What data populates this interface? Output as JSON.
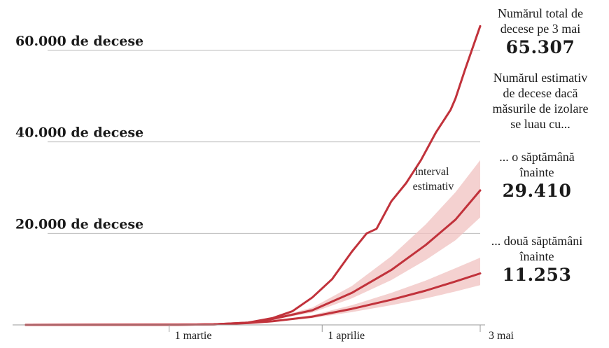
{
  "chart_data": {
    "type": "line",
    "x_axis": {
      "start": "2020-02-01",
      "end": "2020-05-03",
      "ticks": [
        {
          "date": "2020-03-01",
          "label": "1 martie"
        },
        {
          "date": "2020-04-01",
          "label": "1 aprilie"
        },
        {
          "date": "2020-05-03",
          "label": "3 mai"
        }
      ]
    },
    "y_axis": {
      "ylim": [
        0,
        60000
      ],
      "gridlines": [
        {
          "value": 20000,
          "label": "20.000 de decese"
        },
        {
          "value": 40000,
          "label": "40.000 de decese"
        },
        {
          "value": 60000,
          "label": "60.000 de decese"
        }
      ]
    },
    "series": [
      {
        "color": "#c1323b",
        "points": [
          [
            "2020-02-01",
            0
          ],
          [
            "2020-03-01",
            30
          ],
          [
            "2020-03-10",
            100
          ],
          [
            "2020-03-17",
            500
          ],
          [
            "2020-03-22",
            1500
          ],
          [
            "2020-03-26",
            3000
          ],
          [
            "2020-03-30",
            6000
          ],
          [
            "2020-04-03",
            10000
          ],
          [
            "2020-04-07",
            16000
          ],
          [
            "2020-04-10",
            20000
          ],
          [
            "2020-04-12",
            21000
          ],
          [
            "2020-04-15",
            27000
          ],
          [
            "2020-04-18",
            31000
          ],
          [
            "2020-04-21",
            36000
          ],
          [
            "2020-04-24",
            42000
          ],
          [
            "2020-04-27",
            47000
          ],
          [
            "2020-04-28",
            49500
          ],
          [
            "2020-04-30",
            56000
          ],
          [
            "2020-05-03",
            65307
          ]
        ]
      },
      {
        "color": "#c1323b",
        "points": [
          [
            "2020-02-01",
            0
          ],
          [
            "2020-03-01",
            30
          ],
          [
            "2020-03-10",
            100
          ],
          [
            "2020-03-17",
            500
          ],
          [
            "2020-03-22",
            1300
          ],
          [
            "2020-03-30",
            3200
          ],
          [
            "2020-04-07",
            7000
          ],
          [
            "2020-04-15",
            12000
          ],
          [
            "2020-04-22",
            17500
          ],
          [
            "2020-04-28",
            23000
          ],
          [
            "2020-05-03",
            29410
          ]
        ],
        "band_upper": [
          [
            "2020-03-17",
            500
          ],
          [
            "2020-03-22",
            1450
          ],
          [
            "2020-03-30",
            3800
          ],
          [
            "2020-04-07",
            8500
          ],
          [
            "2020-04-15",
            15000
          ],
          [
            "2020-04-22",
            22000
          ],
          [
            "2020-04-28",
            29000
          ],
          [
            "2020-05-03",
            36000
          ]
        ],
        "band_lower": [
          [
            "2020-03-17",
            500
          ],
          [
            "2020-03-22",
            1150
          ],
          [
            "2020-03-30",
            2700
          ],
          [
            "2020-04-07",
            5800
          ],
          [
            "2020-04-15",
            9800
          ],
          [
            "2020-04-22",
            14200
          ],
          [
            "2020-04-28",
            18500
          ],
          [
            "2020-05-03",
            23500
          ]
        ]
      },
      {
        "color": "#c1323b",
        "points": [
          [
            "2020-02-01",
            0
          ],
          [
            "2020-03-01",
            30
          ],
          [
            "2020-03-10",
            100
          ],
          [
            "2020-03-17",
            400
          ],
          [
            "2020-03-22",
            800
          ],
          [
            "2020-03-30",
            1800
          ],
          [
            "2020-04-07",
            3500
          ],
          [
            "2020-04-15",
            5500
          ],
          [
            "2020-04-22",
            7500
          ],
          [
            "2020-04-28",
            9500
          ],
          [
            "2020-05-03",
            11253
          ]
        ],
        "band_upper": [
          [
            "2020-03-17",
            400
          ],
          [
            "2020-03-22",
            880
          ],
          [
            "2020-03-30",
            2150
          ],
          [
            "2020-04-07",
            4300
          ],
          [
            "2020-04-15",
            7000
          ],
          [
            "2020-04-22",
            9700
          ],
          [
            "2020-04-28",
            12400
          ],
          [
            "2020-05-03",
            14700
          ]
        ],
        "band_lower": [
          [
            "2020-03-17",
            400
          ],
          [
            "2020-03-22",
            720
          ],
          [
            "2020-03-30",
            1500
          ],
          [
            "2020-04-07",
            2800
          ],
          [
            "2020-04-15",
            4300
          ],
          [
            "2020-04-22",
            5800
          ],
          [
            "2020-04-28",
            7300
          ],
          [
            "2020-05-03",
            8700
          ]
        ]
      }
    ],
    "band_color": "#f0c2c0",
    "band_label": "interval\nestimativ",
    "annotations": {
      "total_text": "Numărul total de\ndecese pe 3 mai",
      "total_value": "65.307",
      "estimate_text": "Numărul estimativ\nde decese dacă\nmăsurile de izolare\nse luau cu...",
      "week_text": "... o săptămână\nînainte",
      "week_value": "29.410",
      "two_weeks_text": "... două săptămâni\nînainte",
      "two_weeks_value": "11.253"
    },
    "grid": true,
    "legend": "none"
  }
}
